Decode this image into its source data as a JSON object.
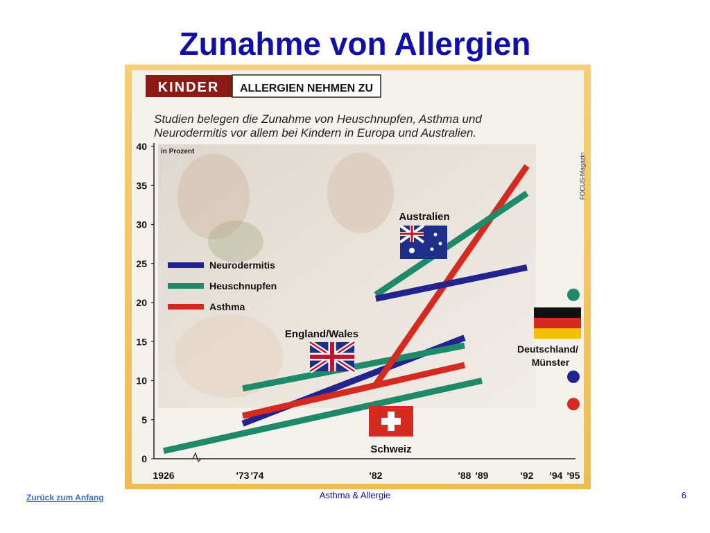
{
  "slide": {
    "title": "Zunahme von Allergien",
    "footer_link": "Zurück zum Anfang",
    "footer_center": "Asthma & Allergie",
    "page_number": "6"
  },
  "colors": {
    "frame": "#f2c766",
    "title": "#1010a8",
    "neurodermitis": "#23238f",
    "heuschnupfen": "#1f8a6a",
    "asthma": "#d42a20",
    "badge": "#8a1a14"
  },
  "chart_data": {
    "type": "line",
    "badge": "KINDER",
    "heading": "ALLERGIEN NEHMEN ZU",
    "subtitle_line1": "Studien belegen die Zunahme von Heuschnupfen, Asthma und",
    "subtitle_line2": "Neurodermitis vor allem bei Kindern in Europa und Australien.",
    "ylabel": "in Prozent",
    "source": "FOCUS-Magazin",
    "ylim": [
      0,
      40
    ],
    "y_ticks": [
      0,
      5,
      10,
      15,
      20,
      25,
      30,
      35,
      40
    ],
    "x_ticks": [
      "1926",
      "'73",
      "'74",
      "'82",
      "'88",
      "'89",
      "'92",
      "'94",
      "'95"
    ],
    "grid": false,
    "legend_position": "left-middle",
    "legend": [
      {
        "label": "Neurodermitis",
        "color": "#23238f"
      },
      {
        "label": "Heuschnupfen",
        "color": "#1f8a6a"
      },
      {
        "label": "Asthma",
        "color": "#d42a20"
      }
    ],
    "region_labels": [
      "Australien",
      "England/Wales",
      "Schweiz",
      "Deutschland/",
      "Münster"
    ],
    "series": [
      {
        "region": "Schweiz",
        "condition": "Heuschnupfen",
        "color": "#1f8a6a",
        "x": [
          "1926",
          "'89"
        ],
        "y": [
          1,
          10
        ]
      },
      {
        "region": "England/Wales",
        "condition": "Neurodermitis",
        "color": "#23238f",
        "x": [
          "'73",
          "'88"
        ],
        "y": [
          4.5,
          15.5
        ]
      },
      {
        "region": "England/Wales",
        "condition": "Asthma",
        "color": "#d42a20",
        "x": [
          "'73",
          "'88"
        ],
        "y": [
          5.5,
          12
        ]
      },
      {
        "region": "England/Wales",
        "condition": "Heuschnupfen",
        "color": "#1f8a6a",
        "x": [
          "'73",
          "'88"
        ],
        "y": [
          9,
          14.5
        ]
      },
      {
        "region": "Australien",
        "condition": "Asthma",
        "color": "#d42a20",
        "x": [
          "'82",
          "'92"
        ],
        "y": [
          9.5,
          37.5
        ]
      },
      {
        "region": "Australien",
        "condition": "Heuschnupfen",
        "color": "#1f8a6a",
        "x": [
          "'82",
          "'92"
        ],
        "y": [
          21,
          34
        ]
      },
      {
        "region": "Australien",
        "condition": "Neurodermitis",
        "color": "#23238f",
        "x": [
          "'82",
          "'92"
        ],
        "y": [
          20.5,
          24.5
        ]
      }
    ],
    "points": [
      {
        "region": "Deutschland/Münster",
        "condition": "Heuschnupfen",
        "color": "#1f8a6a",
        "x": "'95",
        "y": 21
      },
      {
        "region": "Deutschland/Münster",
        "condition": "Neurodermitis",
        "color": "#23238f",
        "x": "'95",
        "y": 10.5
      },
      {
        "region": "Deutschland/Münster",
        "condition": "Asthma",
        "color": "#d42a20",
        "x": "'95",
        "y": 7
      }
    ]
  }
}
